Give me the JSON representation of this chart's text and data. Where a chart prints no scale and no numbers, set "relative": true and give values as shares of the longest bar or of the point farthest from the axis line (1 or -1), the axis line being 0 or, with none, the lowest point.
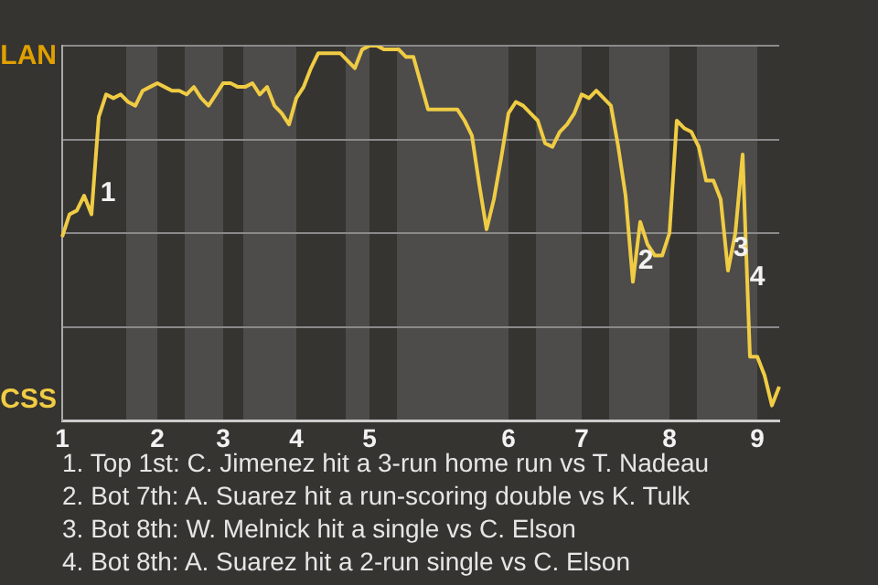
{
  "chart_data": {
    "type": "line",
    "relative": true,
    "categories": [
      "1",
      null,
      null,
      null,
      null,
      null,
      null,
      null,
      null,
      null,
      null,
      null,
      null,
      "2",
      null,
      null,
      null,
      null,
      null,
      null,
      null,
      null,
      "3",
      null,
      null,
      null,
      null,
      null,
      null,
      null,
      null,
      null,
      "4",
      null,
      null,
      null,
      null,
      null,
      null,
      null,
      null,
      null,
      "5",
      null,
      null,
      null,
      null,
      null,
      null,
      null,
      null,
      null,
      null,
      null,
      null,
      null,
      null,
      null,
      null,
      null,
      null,
      "6",
      null,
      null,
      null,
      null,
      null,
      null,
      null,
      null,
      null,
      "7",
      null,
      null,
      null,
      null,
      null,
      null,
      null,
      null,
      null,
      null,
      null,
      "8",
      null,
      null,
      null,
      null,
      null,
      null,
      null,
      null,
      null,
      null,
      null,
      "9",
      null,
      null,
      null
    ],
    "series": [
      {
        "color": "#f0cc44",
        "values": [
          0.49,
          0.55,
          0.56,
          0.6,
          0.55,
          0.81,
          0.87,
          0.86,
          0.87,
          0.85,
          0.84,
          0.88,
          0.89,
          0.9,
          0.89,
          0.88,
          0.88,
          0.87,
          0.89,
          0.86,
          0.84,
          0.87,
          0.9,
          0.9,
          0.89,
          0.89,
          0.9,
          0.87,
          0.89,
          0.84,
          0.82,
          0.79,
          0.86,
          0.89,
          0.94,
          0.98,
          0.98,
          0.98,
          0.98,
          0.96,
          0.94,
          0.99,
          1,
          1,
          0.99,
          0.99,
          0.99,
          0.97,
          0.97,
          0.9,
          0.83,
          0.83,
          0.83,
          0.83,
          0.83,
          0.8,
          0.76,
          0.63,
          0.51,
          0.59,
          0.7,
          0.82,
          0.85,
          0.84,
          0.82,
          0.8,
          0.74,
          0.73,
          0.77,
          0.79,
          0.82,
          0.87,
          0.86,
          0.88,
          0.86,
          0.84,
          0.73,
          0.6,
          0.37,
          0.53,
          0.47,
          0.44,
          0.44,
          0.5,
          0.8,
          0.78,
          0.77,
          0.73,
          0.64,
          0.64,
          0.59,
          0.4,
          0.5,
          0.71,
          0.17,
          0.17,
          0.12,
          0.04,
          0.09
        ]
      }
    ],
    "grid": "y",
    "legend": false,
    "marker": "none",
    "annotations": [
      "LAN",
      "CSS",
      "1",
      "2",
      "3",
      "4",
      "1. Top 1st: C. Jimenez hit a 3-run home run vs T. Nadeau",
      "2. Bot 7th: A. Suarez hit a run-scoring double vs K. Tulk",
      "3. Bot 8th: W. Melnick hit a single vs C. Elson",
      "4. Bot 8th: A. Suarez hit a 2-run single vs C. Elson"
    ]
  }
}
